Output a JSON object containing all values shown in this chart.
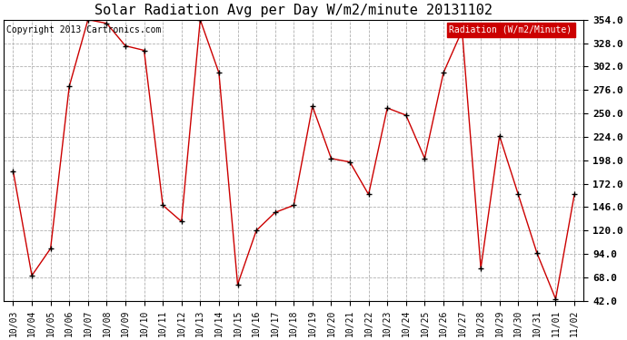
{
  "title": "Solar Radiation Avg per Day W/m2/minute 20131102",
  "copyright": "Copyright 2013 Cartronics.com",
  "legend_label": "Radiation (W/m2/Minute)",
  "x_labels": [
    "10/03",
    "10/04",
    "10/05",
    "10/06",
    "10/07",
    "10/08",
    "10/09",
    "10/10",
    "10/11",
    "10/12",
    "10/13",
    "10/14",
    "10/15",
    "10/16",
    "10/17",
    "10/18",
    "10/19",
    "10/20",
    "10/21",
    "10/22",
    "10/23",
    "10/24",
    "10/25",
    "10/26",
    "10/27",
    "10/28",
    "10/29",
    "10/30",
    "10/31",
    "11/01",
    "11/02"
  ],
  "y_values": [
    186,
    70,
    100,
    280,
    354,
    350,
    325,
    320,
    148,
    130,
    354,
    295,
    60,
    120,
    140,
    148,
    258,
    200,
    196,
    160,
    256,
    248,
    200,
    295,
    342,
    78,
    225,
    160,
    95,
    44,
    160
  ],
  "ylim_min": 42.0,
  "ylim_max": 354.0,
  "yticks": [
    42.0,
    68.0,
    94.0,
    120.0,
    146.0,
    172.0,
    198.0,
    224.0,
    250.0,
    276.0,
    302.0,
    328.0,
    354.0
  ],
  "line_color": "#cc0000",
  "marker_color": "#000000",
  "bg_color": "#ffffff",
  "grid_color": "#b0b0b0",
  "title_fontsize": 11,
  "copyright_fontsize": 7,
  "tick_fontsize": 8,
  "xtick_fontsize": 7,
  "legend_bg": "#cc0000",
  "legend_text_color": "#ffffff",
  "legend_fontsize": 7
}
